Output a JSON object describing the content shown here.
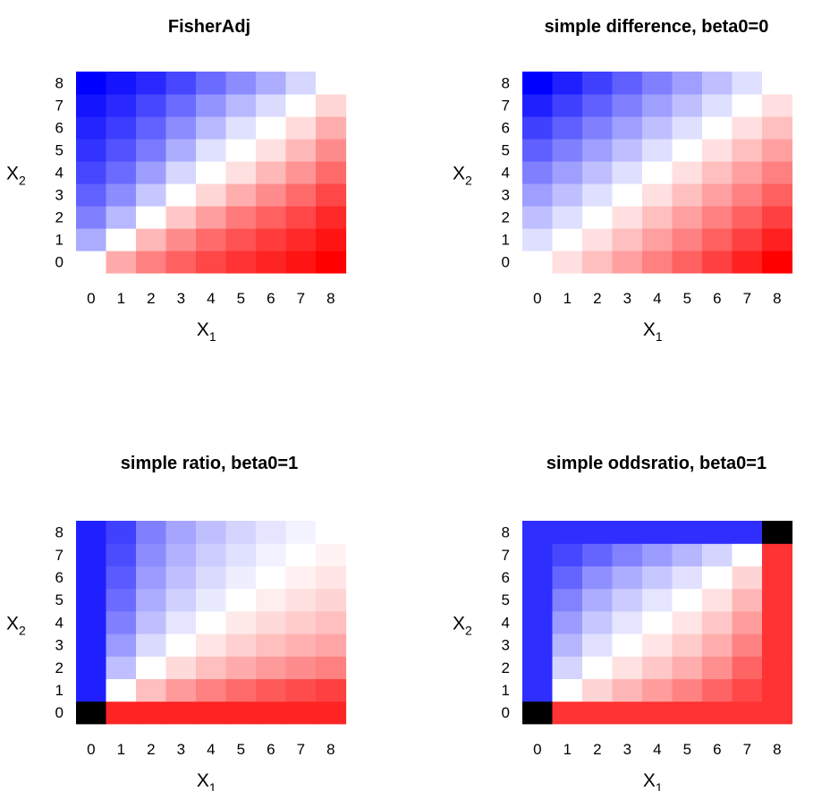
{
  "chart_data": [
    {
      "type": "heatmap",
      "title": "FisherAdj",
      "xlabel": "X",
      "xlabel_sub": "1",
      "ylabel": "X",
      "ylabel_sub": "2",
      "x_ticks": [
        "0",
        "1",
        "2",
        "3",
        "4",
        "5",
        "6",
        "7",
        "8"
      ],
      "y_ticks": [
        "0",
        "1",
        "2",
        "3",
        "4",
        "5",
        "6",
        "7",
        "8"
      ],
      "color_scale": {
        "low": "#0000ff",
        "mid": "#ffffff",
        "high": "#ff0000",
        "special": "#000000"
      },
      "note": "rows listed from X2=0 (bottom) to X2=8 (top); value in [-1,1], negative=blue, positive=red",
      "values": [
        [
          0.0,
          0.33,
          0.5,
          0.62,
          0.72,
          0.8,
          0.86,
          0.92,
          1.0
        ],
        [
          -0.33,
          0.0,
          0.28,
          0.45,
          0.58,
          0.68,
          0.76,
          0.84,
          0.92
        ],
        [
          -0.5,
          -0.28,
          0.0,
          0.22,
          0.38,
          0.52,
          0.62,
          0.72,
          0.84
        ],
        [
          -0.62,
          -0.45,
          -0.22,
          0.0,
          0.16,
          0.32,
          0.45,
          0.58,
          0.72
        ],
        [
          -0.72,
          -0.58,
          -0.38,
          -0.16,
          0.0,
          0.12,
          0.28,
          0.42,
          0.58
        ],
        [
          -0.8,
          -0.68,
          -0.52,
          -0.32,
          -0.12,
          0.0,
          0.12,
          0.28,
          0.45
        ],
        [
          -0.86,
          -0.76,
          -0.62,
          -0.45,
          -0.28,
          -0.12,
          0.0,
          0.14,
          0.32
        ],
        [
          -0.92,
          -0.84,
          -0.72,
          -0.58,
          -0.42,
          -0.28,
          -0.14,
          0.0,
          0.16
        ],
        [
          -1.0,
          -0.92,
          -0.84,
          -0.72,
          -0.58,
          -0.45,
          -0.32,
          -0.16,
          0.0
        ]
      ]
    },
    {
      "type": "heatmap",
      "title": "simple difference, beta0=0",
      "xlabel": "X",
      "xlabel_sub": "1",
      "ylabel": "X",
      "ylabel_sub": "2",
      "x_ticks": [
        "0",
        "1",
        "2",
        "3",
        "4",
        "5",
        "6",
        "7",
        "8"
      ],
      "y_ticks": [
        "0",
        "1",
        "2",
        "3",
        "4",
        "5",
        "6",
        "7",
        "8"
      ],
      "color_scale": {
        "low": "#0000ff",
        "mid": "#ffffff",
        "high": "#ff0000",
        "special": "#000000"
      },
      "note": "value = (X1 - X2)/8",
      "formula": "diff"
    },
    {
      "type": "heatmap",
      "title": "simple ratio, beta0=1",
      "xlabel": "X",
      "xlabel_sub": "1",
      "ylabel": "X",
      "ylabel_sub": "2",
      "x_ticks": [
        "0",
        "1",
        "2",
        "3",
        "4",
        "5",
        "6",
        "7",
        "8"
      ],
      "y_ticks": [
        "0",
        "1",
        "2",
        "3",
        "4",
        "5",
        "6",
        "7",
        "8"
      ],
      "color_scale": {
        "low": "#0000ff",
        "mid": "#ffffff",
        "high": "#ff0000",
        "special": "#000000"
      },
      "note": "value = log(X1/X2) scaled; X1=0 column blue, X2=0 row red, (0,0) black",
      "formula": "ratio"
    },
    {
      "type": "heatmap",
      "title": "simple oddsratio, beta0=1",
      "xlabel": "X",
      "xlabel_sub": "1",
      "ylabel": "X",
      "ylabel_sub": "2",
      "x_ticks": [
        "0",
        "1",
        "2",
        "3",
        "4",
        "5",
        "6",
        "7",
        "8"
      ],
      "y_ticks": [
        "0",
        "1",
        "2",
        "3",
        "4",
        "5",
        "6",
        "7",
        "8"
      ],
      "color_scale": {
        "low": "#0000ff",
        "mid": "#ffffff",
        "high": "#ff0000",
        "special": "#000000"
      },
      "note": "value = log odds ratio scaled; boundary cells saturated, (0,0) and (8,8) black",
      "formula": "odds"
    }
  ]
}
